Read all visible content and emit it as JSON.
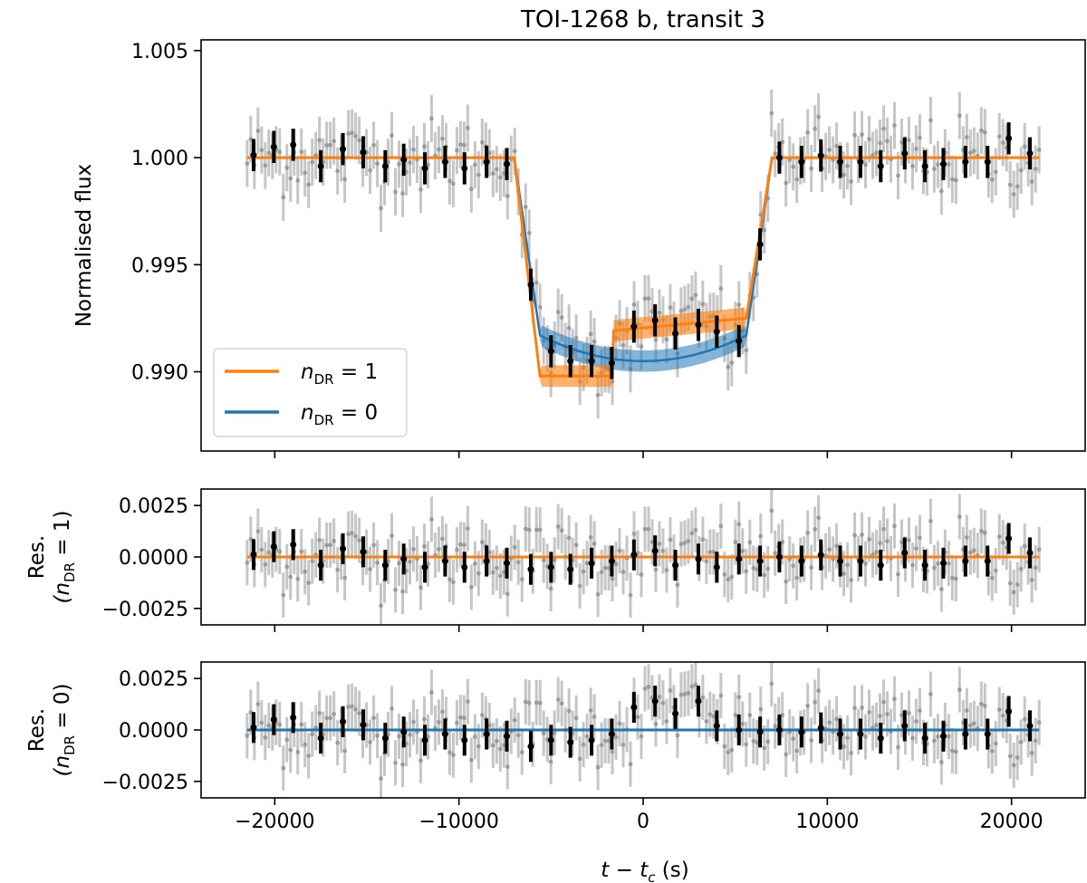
{
  "chart_data": {
    "type": "scatter",
    "title": "TOI-1268 b, transit 3",
    "xlabel_main": "t − t",
    "xlabel_sub": "c",
    "xlabel_unit": " (s)",
    "xlim": [
      -24000,
      24000
    ],
    "xticks": [
      -20000,
      -10000,
      0,
      10000,
      20000
    ],
    "xtick_labels": [
      "−20000",
      "−10000",
      "0",
      "10000",
      "20000"
    ],
    "colors": {
      "orange": "#ff7f0e",
      "blue": "#1f77b4",
      "raw": "#a0a0a0",
      "binned": "#000000"
    },
    "panels": [
      {
        "id": "flux",
        "ylabel": "Normalised flux",
        "ylim": [
          0.9863,
          1.0055
        ],
        "yticks": [
          0.99,
          0.995,
          1.0,
          1.005
        ],
        "ytick_labels": [
          "0.990",
          "0.995",
          "1.000",
          "1.005"
        ]
      },
      {
        "id": "res1",
        "ylabel_line1": "Res.",
        "ylabel_line2": "(n",
        "ylabel_sub": "DR",
        "ylabel_tail": " = 1)",
        "ylim": [
          -0.0033,
          0.0033
        ],
        "yticks": [
          -0.0025,
          0.0,
          0.0025
        ],
        "ytick_labels": [
          "−0.0025",
          "0.0000",
          "0.0025"
        ]
      },
      {
        "id": "res0",
        "ylabel_line1": "Res.",
        "ylabel_line2": "(n",
        "ylabel_sub": "DR",
        "ylabel_tail": " = 0)",
        "ylim": [
          -0.0033,
          0.0033
        ],
        "yticks": [
          -0.0025,
          0.0,
          0.0025
        ],
        "ytick_labels": [
          "−0.0025",
          "0.0000",
          "0.0025"
        ]
      }
    ],
    "legend": [
      {
        "label_main": "n",
        "label_sub": "DR",
        "label_tail": " = 1",
        "color": "#ff7f0e"
      },
      {
        "label_main": "n",
        "label_sub": "DR",
        "label_tail": " = 0",
        "color": "#1f77b4"
      }
    ],
    "legend_position": "lower-left",
    "model_params": {
      "t1": -7000,
      "t2": -5600,
      "t3": 5600,
      "t4": 7000,
      "depth_nDR0": 0.0095,
      "depth_nDR1_left": 0.0102,
      "depth_nDR1_right": 0.0079,
      "spot_center": -1600
    },
    "binned_x": [
      -21150,
      -20050,
      -19000,
      -17500,
      -16300,
      -15200,
      -14000,
      -13000,
      -11850,
      -10750,
      -9700,
      -8500,
      -7400,
      -6100,
      -5000,
      -3950,
      -2800,
      -1700,
      -500,
      650,
      1750,
      3000,
      4000,
      5200,
      6350,
      7400,
      8600,
      9650,
      10700,
      11800,
      12900,
      14200,
      15300,
      16300,
      17500,
      18700,
      19850,
      21000
    ],
    "binned_res1": [
      0.00012,
      0.0005,
      0.0006,
      -0.0004,
      0.0004,
      0.00025,
      -0.0004,
      -0.0001,
      -0.0005,
      -0.0002,
      -0.0005,
      -0.0002,
      -0.0003,
      -0.0006,
      -0.0005,
      -0.0006,
      -0.0003,
      -0.0002,
      0.0001,
      0.0003,
      -0.0004,
      -0.0001,
      -0.0005,
      -0.0001,
      -0.0002,
      0.0,
      -0.0002,
      0.0001,
      -0.0002,
      -0.0002,
      -0.0004,
      0.0002,
      -0.0004,
      -0.0003,
      -0.0002,
      -0.0002,
      0.0009,
      0.0002
    ],
    "binned_res0": [
      0.00012,
      0.0005,
      0.0006,
      -0.0004,
      0.0004,
      0.00025,
      -0.0004,
      -0.0001,
      -0.0005,
      -0.0002,
      -0.0005,
      -0.0002,
      -0.0003,
      -0.0008,
      -0.0005,
      -0.0006,
      -0.0005,
      -0.0002,
      0.0011,
      0.0014,
      0.0008,
      0.0014,
      0.0002,
      0.0,
      -0.0001,
      0.0,
      -0.0001,
      0.0001,
      -0.0002,
      -0.0002,
      -0.0004,
      0.0002,
      -0.0004,
      -0.0003,
      -0.0002,
      -0.0002,
      0.0009,
      0.0002
    ],
    "binned_err": 0.00075,
    "raw_points": 220,
    "raw_err": 0.0011,
    "raw_scatter": 0.0009
  }
}
